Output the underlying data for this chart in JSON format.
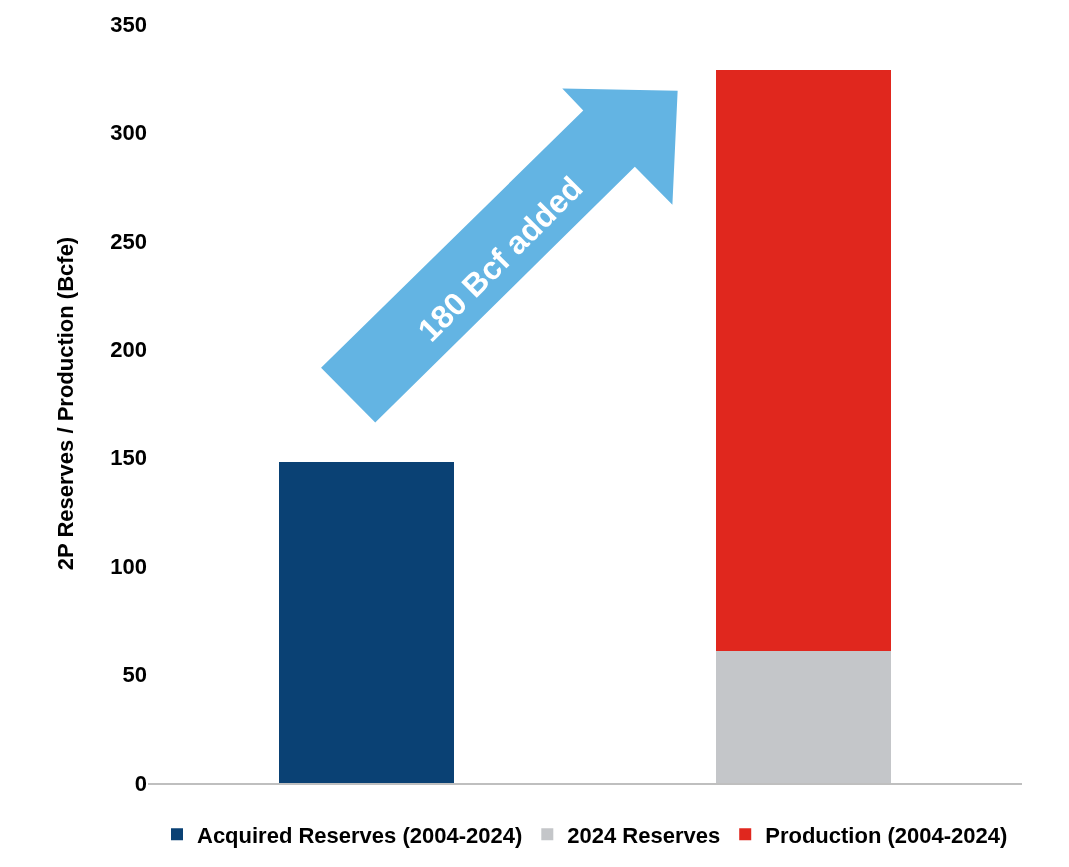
{
  "chart_data": {
    "type": "bar",
    "stacked": true,
    "ylabel": "2P Reserves / Production (Bcfe)",
    "categories": [
      null,
      null
    ],
    "series": [
      {
        "name": "Acquired Reserves (2004-2024)",
        "color": "#0a4174",
        "values": [
          148,
          null
        ]
      },
      {
        "name": "2024 Reserves",
        "color": "#c4c6c9",
        "values": [
          null,
          61
        ]
      },
      {
        "name": "Production (2004-2024)",
        "color": "#e0271e",
        "values": [
          null,
          268
        ]
      }
    ],
    "ylim": [
      0,
      350
    ],
    "yticks": [
      0,
      50,
      100,
      150,
      200,
      250,
      300,
      350
    ],
    "grid": false,
    "legend": "bottom",
    "tick_labels": "y",
    "annotations": [
      "180 Bcf added"
    ]
  }
}
